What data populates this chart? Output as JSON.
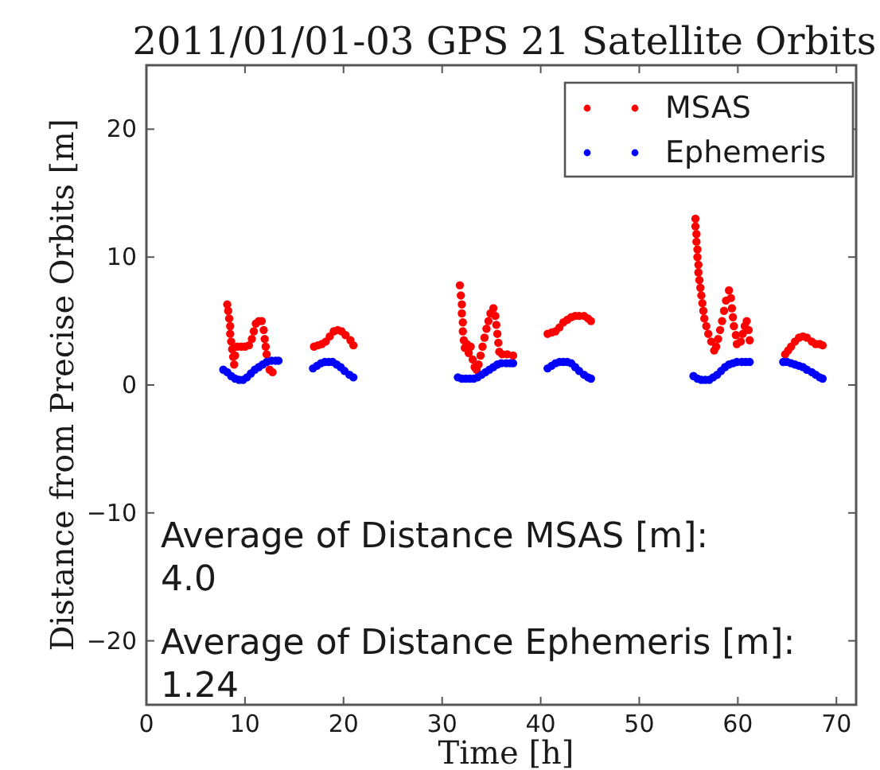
{
  "chart_data": {
    "type": "scatter",
    "title": "2011/01/01-03 GPS 21 Satellite Orbits",
    "xlabel": "Time [h]",
    "ylabel": "Distance from Precise Orbits [m]",
    "xlim": [
      0,
      72
    ],
    "xticks": [
      0,
      10,
      20,
      30,
      40,
      50,
      60,
      70
    ],
    "ylim": [
      -25,
      25
    ],
    "yticks": [
      -20,
      -10,
      0,
      10,
      20
    ],
    "legend": "top right",
    "marker": "circle",
    "annotations": [
      "Average of Distance MSAS [m]:\n4.0",
      "Average of Distance Ephemeris [m]:\n1.24"
    ],
    "series": [
      {
        "name": "MSAS",
        "color": "#ff0000",
        "x": [
          8.2,
          8.3,
          8.4,
          8.5,
          8.5,
          8.6,
          8.7,
          8.8,
          8.9,
          9.0,
          9.2,
          9.6,
          10.0,
          10.4,
          10.7,
          10.9,
          11.1,
          11.4,
          11.7,
          11.9,
          12.0,
          12.1,
          12.2,
          12.5,
          12.8,
          17.0,
          17.4,
          17.8,
          18.2,
          18.6,
          19.0,
          19.4,
          19.8,
          20.2,
          20.7,
          21.0,
          31.8,
          31.9,
          32.0,
          32.0,
          32.1,
          32.1,
          32.2,
          32.3,
          32.5,
          32.7,
          32.9,
          33.1,
          33.3,
          33.5,
          33.7,
          33.9,
          34.1,
          34.3,
          34.5,
          34.7,
          34.9,
          35.2,
          35.4,
          35.5,
          35.6,
          35.7,
          35.8,
          36.1,
          36.6,
          37.2,
          40.7,
          41.1,
          41.5,
          41.9,
          42.3,
          42.7,
          43.1,
          43.5,
          43.9,
          44.4,
          44.8,
          45.1,
          55.7,
          55.7,
          55.8,
          55.8,
          55.9,
          55.9,
          56.0,
          56.0,
          56.1,
          56.2,
          56.3,
          56.4,
          56.5,
          56.6,
          56.8,
          57.0,
          57.3,
          57.6,
          57.8,
          58.0,
          58.2,
          58.4,
          58.6,
          58.8,
          59.1,
          59.3,
          59.4,
          59.5,
          59.6,
          59.8,
          59.9,
          60.3,
          60.5,
          60.7,
          60.9,
          61.1,
          61.2,
          64.8,
          65.1,
          65.4,
          65.8,
          66.2,
          66.6,
          67.0,
          67.5,
          67.9,
          68.3,
          68.6
        ],
        "values": [
          6.3,
          5.8,
          5.2,
          4.6,
          4.0,
          3.4,
          2.8,
          2.2,
          1.6,
          2.3,
          3.0,
          3.0,
          3.0,
          3.1,
          3.6,
          4.2,
          4.8,
          5.0,
          5.0,
          4.3,
          3.6,
          3.0,
          2.4,
          1.2,
          1.0,
          3.0,
          3.1,
          3.2,
          3.4,
          3.8,
          4.2,
          4.3,
          4.2,
          3.9,
          3.5,
          3.1,
          7.8,
          7.0,
          6.3,
          5.6,
          4.9,
          4.2,
          3.5,
          2.9,
          3.2,
          2.5,
          3.0,
          2.0,
          1.4,
          1.2,
          1.6,
          2.3,
          3.0,
          3.7,
          4.4,
          5.0,
          5.6,
          6.0,
          5.4,
          4.7,
          4.0,
          3.3,
          2.6,
          2.4,
          2.4,
          2.3,
          4.0,
          4.1,
          4.2,
          4.5,
          4.9,
          5.1,
          5.3,
          5.4,
          5.4,
          5.4,
          5.2,
          5.0,
          13.0,
          12.4,
          11.8,
          11.2,
          10.6,
          10.0,
          9.4,
          8.8,
          8.2,
          7.6,
          7.0,
          6.4,
          5.8,
          5.2,
          4.6,
          4.0,
          3.4,
          2.7,
          3.0,
          3.6,
          4.3,
          5.0,
          5.8,
          6.6,
          7.4,
          6.8,
          6.0,
          5.3,
          4.6,
          3.9,
          3.2,
          3.4,
          4.0,
          4.6,
          5.0,
          4.3,
          3.5,
          2.4,
          2.7,
          3.0,
          3.4,
          3.7,
          3.8,
          3.7,
          3.4,
          3.2,
          3.2,
          3.1
        ]
      },
      {
        "name": "Ephemeris",
        "color": "#0000ff",
        "x": [
          7.8,
          8.2,
          8.6,
          9.0,
          9.4,
          9.8,
          10.2,
          10.6,
          11.0,
          11.4,
          11.8,
          12.2,
          12.7,
          13.1,
          13.4,
          16.9,
          17.3,
          17.7,
          18.1,
          18.5,
          18.9,
          19.3,
          19.7,
          20.1,
          20.6,
          21.0,
          31.6,
          32.0,
          32.4,
          32.8,
          33.2,
          33.6,
          34.0,
          34.4,
          34.8,
          35.2,
          35.6,
          36.0,
          36.5,
          36.9,
          37.2,
          40.7,
          41.1,
          41.5,
          41.9,
          42.3,
          42.7,
          43.1,
          43.5,
          43.9,
          44.4,
          44.8,
          45.1,
          55.5,
          55.9,
          56.3,
          56.7,
          57.1,
          57.5,
          57.9,
          58.3,
          58.7,
          59.1,
          59.5,
          59.9,
          60.4,
          60.8,
          61.2,
          64.6,
          65.0,
          65.4,
          65.8,
          66.2,
          66.6,
          67.0,
          67.5,
          67.9,
          68.3,
          68.6
        ],
        "values": [
          1.2,
          1.0,
          0.7,
          0.5,
          0.4,
          0.4,
          0.6,
          0.9,
          1.2,
          1.4,
          1.6,
          1.8,
          1.9,
          1.9,
          1.9,
          1.3,
          1.5,
          1.7,
          1.8,
          1.8,
          1.8,
          1.6,
          1.4,
          1.1,
          0.8,
          0.6,
          0.6,
          0.5,
          0.5,
          0.5,
          0.5,
          0.6,
          0.8,
          1.0,
          1.2,
          1.4,
          1.6,
          1.7,
          1.7,
          1.7,
          1.7,
          1.3,
          1.5,
          1.7,
          1.8,
          1.8,
          1.8,
          1.7,
          1.4,
          1.1,
          0.8,
          0.6,
          0.5,
          0.7,
          0.5,
          0.4,
          0.4,
          0.4,
          0.6,
          0.8,
          1.1,
          1.4,
          1.6,
          1.7,
          1.8,
          1.8,
          1.8,
          1.8,
          1.8,
          1.8,
          1.7,
          1.6,
          1.5,
          1.4,
          1.2,
          1.0,
          0.8,
          0.6,
          0.5
        ]
      }
    ]
  }
}
